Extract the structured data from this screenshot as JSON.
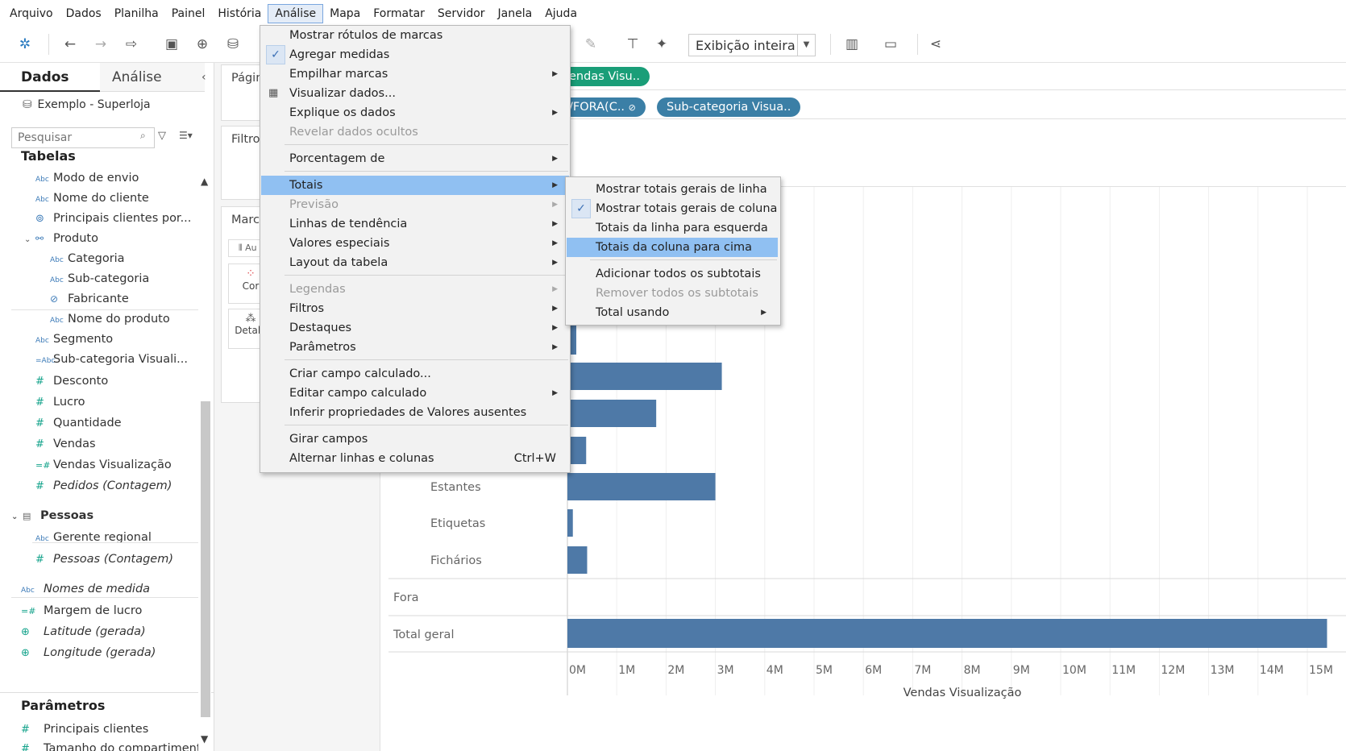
{
  "menubar": {
    "items": [
      "Arquivo",
      "Dados",
      "Planilha",
      "Painel",
      "História",
      "Análise",
      "Mapa",
      "Formatar",
      "Servidor",
      "Janela",
      "Ajuda"
    ],
    "active_index": 5
  },
  "toolbar": {
    "view_mode": "Exibição inteira"
  },
  "datapane": {
    "tab_data": "Dados",
    "tab_analysis": "Análise",
    "datasource": "Exemplo - Superloja",
    "search_placeholder": "Pesquisar",
    "tables_title": "Tabelas",
    "fields": [
      {
        "label": "Modo de envio",
        "icon": "Abc"
      },
      {
        "label": "Nome do cliente",
        "icon": "Abc"
      },
      {
        "label": "Principais clientes por...",
        "icon": "set"
      },
      {
        "label": "Produto",
        "icon": "hierarchy"
      },
      {
        "label": "Categoria",
        "icon": "Abc"
      },
      {
        "label": "Sub-categoria",
        "icon": "Abc"
      },
      {
        "label": "Fabricante",
        "icon": "group"
      },
      {
        "label": "Nome do produto",
        "icon": "Abc"
      },
      {
        "label": "Segmento",
        "icon": "Abc"
      },
      {
        "label": "Sub-categoria Visuali...",
        "icon": "=Abc"
      },
      {
        "label": "Desconto",
        "icon": "#"
      },
      {
        "label": "Lucro",
        "icon": "#"
      },
      {
        "label": "Quantidade",
        "icon": "#"
      },
      {
        "label": "Vendas",
        "icon": "#"
      },
      {
        "label": "Vendas Visualização",
        "icon": "=#"
      },
      {
        "label": "Pedidos (Contagem)",
        "icon": "#"
      }
    ],
    "people_title": "Pessoas",
    "people_fields": [
      {
        "label": "Gerente regional",
        "icon": "Abc"
      },
      {
        "label": "Pessoas (Contagem)",
        "icon": "#"
      }
    ],
    "extra_fields": [
      {
        "label": "Nomes de medida",
        "icon": "Abc"
      },
      {
        "label": "Margem de lucro",
        "icon": "=#"
      },
      {
        "label": "Latitude (gerada)",
        "icon": "globe"
      },
      {
        "label": "Longitude (gerada)",
        "icon": "globe"
      }
    ],
    "params_title": "Parâmetros",
    "params": [
      {
        "label": "Principais clientes",
        "icon": "#"
      },
      {
        "label": "Tamanho do compartiment",
        "icon": "#"
      }
    ]
  },
  "shelves": {
    "pages": "Página",
    "filters": "Filtros",
    "marks": "Marca",
    "marks_type": "Au",
    "color": "Cor",
    "detail": "Detalh"
  },
  "view": {
    "col_pill": "endas Visu..",
    "row_pill_1": "/FORA(C..",
    "row_pill_2": "Sub-categoria Visua..",
    "row_labels": [
      "Envelopes",
      "Estantes",
      "Etiquetas",
      "Fichários"
    ],
    "group_fora": "Fora",
    "total_label": "Total geral"
  },
  "chart_data": {
    "type": "bar",
    "orientation": "horizontal",
    "categories": [
      "",
      "",
      "",
      "",
      "Envelopes",
      "Estantes",
      "Etiquetas",
      "Fichários",
      "Fora",
      "Total geral"
    ],
    "values": [
      3.0,
      0.18,
      3.13,
      1.8,
      0.38,
      3.0,
      0.11,
      0.4,
      0,
      15.4
    ],
    "xlabel": "Vendas Visualização",
    "x_ticks": [
      "0M",
      "1M",
      "2M",
      "3M",
      "4M",
      "5M",
      "6M",
      "7M",
      "8M",
      "9M",
      "10M",
      "11M",
      "12M",
      "13M",
      "14M",
      "15M",
      "1"
    ],
    "xlim": [
      0,
      15.6
    ],
    "color": "#4e79a7",
    "grid": true
  },
  "analysis_menu": {
    "items": [
      {
        "label": "Mostrar rótulos de marcas"
      },
      {
        "label": "Agregar medidas",
        "checked": true
      },
      {
        "label": "Empilhar marcas",
        "submenu": true
      },
      {
        "label": "Visualizar dados...",
        "icon": "table"
      },
      {
        "label": "Explique os dados",
        "submenu": true
      },
      {
        "label": "Revelar dados ocultos",
        "disabled": true
      },
      {
        "label": "Porcentagem de",
        "submenu": true
      },
      {
        "label": "Totais",
        "submenu": true,
        "highlight": true
      },
      {
        "label": "Previsão",
        "submenu": true,
        "disabled": true
      },
      {
        "label": "Linhas de tendência",
        "submenu": true
      },
      {
        "label": "Valores especiais",
        "submenu": true
      },
      {
        "label": "Layout da tabela",
        "submenu": true
      },
      {
        "label": "Legendas",
        "submenu": true,
        "disabled": true
      },
      {
        "label": "Filtros",
        "submenu": true
      },
      {
        "label": "Destaques",
        "submenu": true
      },
      {
        "label": "Parâmetros",
        "submenu": true
      },
      {
        "label": "Criar campo calculado..."
      },
      {
        "label": "Editar campo calculado",
        "submenu": true
      },
      {
        "label": "Inferir propriedades de Valores ausentes"
      },
      {
        "label": "Girar campos"
      },
      {
        "label": "Alternar linhas e colunas",
        "shortcut": "Ctrl+W"
      }
    ]
  },
  "totals_submenu": {
    "items": [
      {
        "label": "Mostrar totais gerais de linha"
      },
      {
        "label": "Mostrar totais gerais de coluna",
        "checked": true
      },
      {
        "label": "Totais da linha para esquerda"
      },
      {
        "label": "Totais da coluna para cima",
        "highlight": true
      },
      {
        "label": "Adicionar todos os subtotais"
      },
      {
        "label": "Remover todos os subtotais",
        "disabled": true
      },
      {
        "label": "Total usando",
        "submenu": true
      }
    ]
  }
}
